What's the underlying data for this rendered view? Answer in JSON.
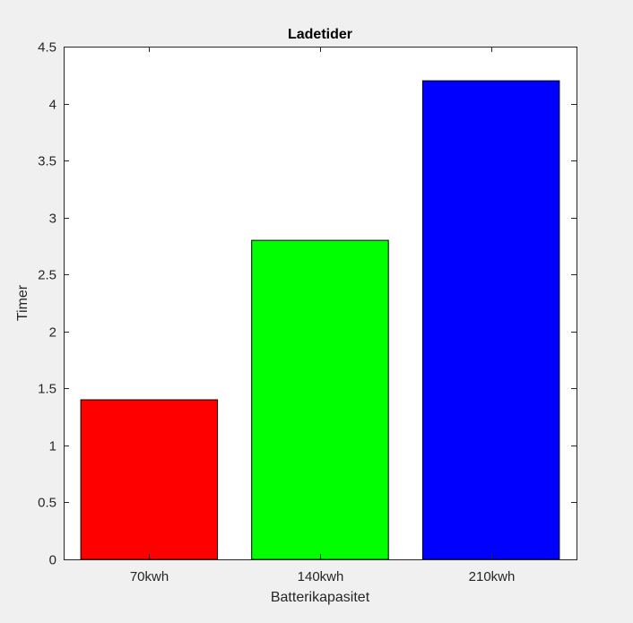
{
  "chart_data": {
    "type": "bar",
    "title": "Ladetider",
    "xlabel": "Batterikapasitet",
    "ylabel": "Timer",
    "categories": [
      "70kwh",
      "140kwh",
      "210kwh"
    ],
    "values": [
      1.4,
      2.8,
      4.2
    ],
    "colors": [
      "#ff0000",
      "#00ff00",
      "#0000ff"
    ],
    "ylim": [
      0,
      4.5
    ],
    "yticks": [
      0,
      0.5,
      1,
      1.5,
      2,
      2.5,
      3,
      3.5,
      4,
      4.5
    ],
    "ytick_labels": [
      "0",
      "0.5",
      "1",
      "1.5",
      "2",
      "2.5",
      "3",
      "3.5",
      "4",
      "4.5"
    ],
    "grid": false,
    "legend": "none"
  },
  "style": {
    "figure_background": "#f0f0f0",
    "axes_background": "#ffffff",
    "axis_color": "#262626",
    "bar_edge_color": "#000000"
  }
}
